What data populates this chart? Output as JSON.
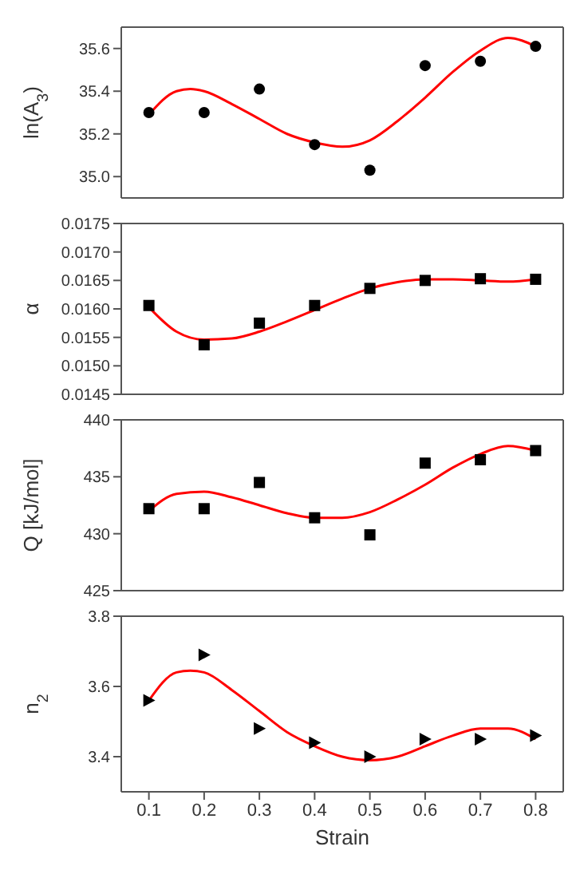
{
  "chart_data": [
    {
      "type": "scatter",
      "ylabel": "ln(A$_{3}$)",
      "xlim": [
        0.05,
        0.85
      ],
      "xticks": [
        0.1,
        0.2,
        0.3,
        0.4,
        0.5,
        0.6,
        0.7,
        0.8
      ],
      "ylim": [
        34.9,
        35.7
      ],
      "yticks": [
        {
          "value": 35.0,
          "label": "35.0"
        },
        35.2,
        35.4,
        35.6
      ],
      "tick_labels": "y",
      "grid": false,
      "series": [
        {
          "marker": "circle",
          "color": "#000000",
          "x": [
            0.1,
            0.2,
            0.3,
            0.4,
            0.5,
            0.6,
            0.7,
            0.8
          ],
          "values": [
            35.3,
            35.3,
            35.41,
            35.15,
            35.03,
            35.52,
            35.54,
            35.61
          ]
        },
        {
          "type": "line",
          "marker": "none",
          "color": "#ff0000",
          "x": [
            0.1,
            0.15,
            0.175,
            0.2,
            0.25,
            0.3,
            0.35,
            0.4,
            0.45,
            0.5,
            0.55,
            0.6,
            0.65,
            0.7,
            0.75,
            0.8
          ],
          "values": [
            35.29,
            35.4,
            35.41,
            35.4,
            35.34,
            35.27,
            35.2,
            35.16,
            35.14,
            35.17,
            35.26,
            35.37,
            35.49,
            35.59,
            35.65,
            35.61
          ]
        }
      ]
    },
    {
      "type": "scatter",
      "ylabel": "α",
      "xlim": [
        0.05,
        0.85
      ],
      "xticks": [
        0.1,
        0.2,
        0.3,
        0.4,
        0.5,
        0.6,
        0.7,
        0.8
      ],
      "ylim": [
        0.0145,
        0.0175
      ],
      "yticks": [
        0.0145,
        {
          "value": 0.015,
          "label": "0.0150"
        },
        0.0155,
        {
          "value": 0.016,
          "label": "0.0160"
        },
        0.0165,
        {
          "value": 0.017,
          "label": "0.0170"
        },
        0.0175
      ],
      "tick_labels": "y",
      "grid": false,
      "series": [
        {
          "marker": "square",
          "color": "#000000",
          "x": [
            0.1,
            0.2,
            0.3,
            0.4,
            0.5,
            0.6,
            0.7,
            0.8
          ],
          "values": [
            0.01606,
            0.01537,
            0.01575,
            0.01606,
            0.01636,
            0.0165,
            0.01653,
            0.01652
          ]
        },
        {
          "type": "line",
          "marker": "none",
          "color": "#ff0000",
          "x": [
            0.1,
            0.15,
            0.2,
            0.25,
            0.3,
            0.35,
            0.4,
            0.45,
            0.5,
            0.55,
            0.6,
            0.65,
            0.7,
            0.75,
            0.8
          ],
          "values": [
            0.01603,
            0.0156,
            0.01546,
            0.01548,
            0.0156,
            0.01578,
            0.01598,
            0.01618,
            0.01636,
            0.01647,
            0.01652,
            0.01652,
            0.0165,
            0.01648,
            0.01652
          ]
        }
      ]
    },
    {
      "type": "scatter",
      "ylabel": "Q [kJ/mol]",
      "xlim": [
        0.05,
        0.85
      ],
      "xticks": [
        0.1,
        0.2,
        0.3,
        0.4,
        0.5,
        0.6,
        0.7,
        0.8
      ],
      "ylim": [
        425,
        440
      ],
      "yticks": [
        425,
        430,
        435,
        440
      ],
      "tick_labels": "y",
      "grid": false,
      "series": [
        {
          "marker": "square",
          "color": "#000000",
          "x": [
            0.1,
            0.2,
            0.3,
            0.4,
            0.5,
            0.6,
            0.7,
            0.8
          ],
          "values": [
            432.2,
            432.2,
            434.5,
            431.4,
            429.9,
            436.2,
            436.5,
            437.3
          ]
        },
        {
          "type": "line",
          "marker": "none",
          "color": "#ff0000",
          "x": [
            0.1,
            0.15,
            0.2,
            0.25,
            0.3,
            0.35,
            0.4,
            0.45,
            0.5,
            0.55,
            0.6,
            0.65,
            0.7,
            0.75,
            0.8
          ],
          "values": [
            432.0,
            433.5,
            433.7,
            433.2,
            432.5,
            431.8,
            431.4,
            431.4,
            431.9,
            433.0,
            434.3,
            435.8,
            437.0,
            437.7,
            437.3
          ]
        }
      ]
    },
    {
      "type": "scatter",
      "ylabel": "n$_{2}$",
      "xlabel": "Strain",
      "xlim": [
        0.05,
        0.85
      ],
      "xticks": [
        0.1,
        0.2,
        0.3,
        0.4,
        0.5,
        0.6,
        0.7,
        0.8
      ],
      "ylim": [
        3.3,
        3.8
      ],
      "yticks": [
        3.4,
        3.6,
        3.8
      ],
      "grid": false,
      "series": [
        {
          "marker": "triangle",
          "color": "#000000",
          "x": [
            0.1,
            0.2,
            0.3,
            0.4,
            0.5,
            0.6,
            0.7,
            0.8
          ],
          "values": [
            3.56,
            3.69,
            3.48,
            3.44,
            3.4,
            3.45,
            3.45,
            3.46
          ]
        },
        {
          "type": "line",
          "marker": "none",
          "color": "#ff0000",
          "x": [
            0.1,
            0.15,
            0.175,
            0.2,
            0.25,
            0.3,
            0.35,
            0.4,
            0.45,
            0.5,
            0.55,
            0.6,
            0.65,
            0.7,
            0.75,
            0.8
          ],
          "values": [
            3.56,
            3.64,
            3.645,
            3.64,
            3.59,
            3.53,
            3.47,
            3.43,
            3.4,
            3.39,
            3.4,
            3.43,
            3.46,
            3.48,
            3.48,
            3.45
          ]
        }
      ]
    }
  ]
}
